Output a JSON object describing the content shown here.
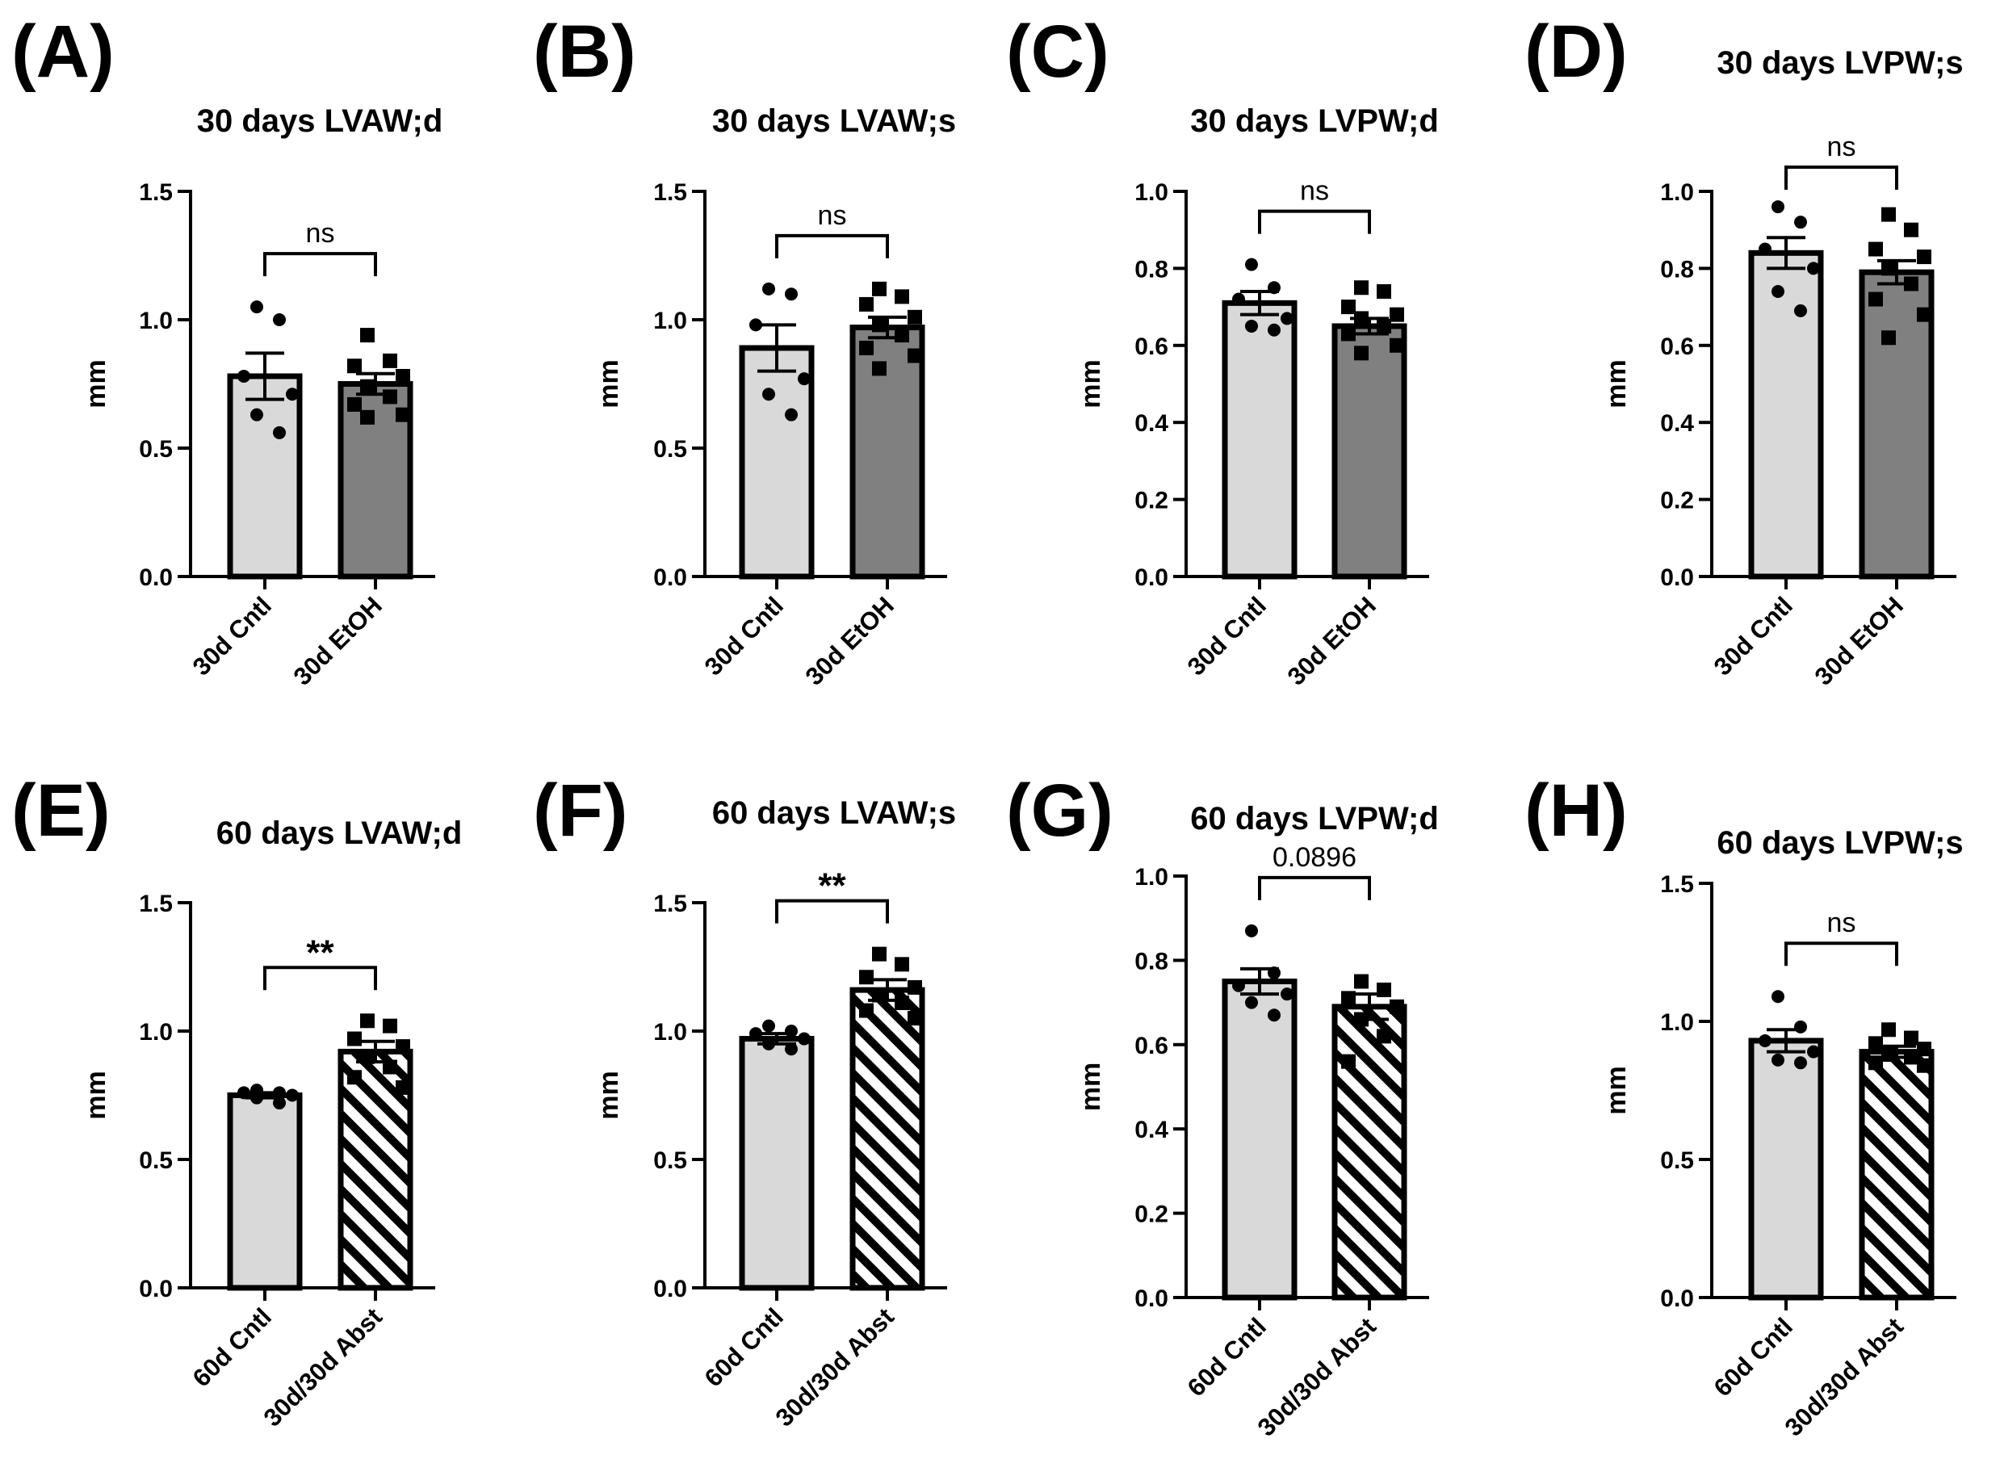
{
  "colors": {
    "control_bar": "#d9d9d9",
    "etoh_bar": "#808080",
    "abst_bar_bg": "#ffffff",
    "ink": "#000000"
  },
  "chart_data": [
    {
      "id": "A",
      "letter": "(A)",
      "type": "bar",
      "title": "30 days LVAW;d",
      "ylabel": "mm",
      "ylim": [
        0,
        1.5
      ],
      "yticks": [
        "0.0",
        "0.5",
        "1.0",
        "1.5"
      ],
      "categories": [
        "30d Cntl",
        "30d EtOH"
      ],
      "values": [
        0.78,
        0.75
      ],
      "sem": [
        0.09,
        0.04
      ],
      "fills": [
        "light",
        "dark"
      ],
      "markers": [
        "circle",
        "square"
      ],
      "points": [
        [
          1.05,
          1.0,
          0.78,
          0.71,
          0.63,
          0.56
        ],
        [
          0.94,
          0.84,
          0.82,
          0.78,
          0.74,
          0.7,
          0.67,
          0.63,
          0.62
        ]
      ],
      "significance": "ns"
    },
    {
      "id": "B",
      "letter": "(B)",
      "type": "bar",
      "title": "30 days LVAW;s",
      "ylabel": "mm",
      "ylim": [
        0,
        1.5
      ],
      "yticks": [
        "0.0",
        "0.5",
        "1.0",
        "1.5"
      ],
      "categories": [
        "30d Cntl",
        "30d EtOH"
      ],
      "values": [
        0.89,
        0.97
      ],
      "sem": [
        0.09,
        0.04
      ],
      "fills": [
        "light",
        "dark"
      ],
      "markers": [
        "circle",
        "square"
      ],
      "points": [
        [
          1.12,
          1.1,
          0.98,
          0.77,
          0.71,
          0.63
        ],
        [
          1.12,
          1.09,
          1.06,
          1.01,
          0.98,
          0.94,
          0.89,
          0.86,
          0.81
        ]
      ],
      "significance": "ns"
    },
    {
      "id": "C",
      "letter": "(C)",
      "type": "bar",
      "title": "30 days LVPW;d",
      "ylabel": "mm",
      "ylim": [
        0,
        1.0
      ],
      "yticks": [
        "0.0",
        "0.2",
        "0.4",
        "0.6",
        "0.8",
        "1.0"
      ],
      "categories": [
        "30d Cntl",
        "30d EtOH"
      ],
      "values": [
        0.71,
        0.65
      ],
      "sem": [
        0.03,
        0.02
      ],
      "fills": [
        "light",
        "dark"
      ],
      "markers": [
        "circle",
        "square"
      ],
      "points": [
        [
          0.81,
          0.75,
          0.72,
          0.67,
          0.65,
          0.64
        ],
        [
          0.75,
          0.74,
          0.7,
          0.68,
          0.67,
          0.65,
          0.63,
          0.6,
          0.58
        ]
      ],
      "significance": "ns"
    },
    {
      "id": "D",
      "letter": "(D)",
      "type": "bar",
      "title": "30 days LVPW;s",
      "ylabel": "mm",
      "ylim": [
        0,
        1.0
      ],
      "yticks": [
        "0.0",
        "0.2",
        "0.4",
        "0.6",
        "0.8",
        "1.0"
      ],
      "categories": [
        "30d Cntl",
        "30d EtOH"
      ],
      "values": [
        0.84,
        0.79
      ],
      "sem": [
        0.04,
        0.03
      ],
      "fills": [
        "light",
        "dark"
      ],
      "markers": [
        "circle",
        "square"
      ],
      "points": [
        [
          0.96,
          0.92,
          0.85,
          0.8,
          0.74,
          0.69
        ],
        [
          0.94,
          0.9,
          0.85,
          0.83,
          0.8,
          0.76,
          0.72,
          0.68,
          0.62
        ]
      ],
      "significance": "ns"
    },
    {
      "id": "E",
      "letter": "(E)",
      "type": "bar",
      "title": "60 days LVAW;d",
      "ylabel": "mm",
      "ylim": [
        0,
        1.5
      ],
      "yticks": [
        "0.0",
        "0.5",
        "1.0",
        "1.5"
      ],
      "categories": [
        "60d Cntl",
        "30d/30d Abst"
      ],
      "values": [
        0.75,
        0.92
      ],
      "sem": [
        0.01,
        0.04
      ],
      "fills": [
        "light",
        "hatch"
      ],
      "markers": [
        "circle",
        "square"
      ],
      "points": [
        [
          0.77,
          0.76,
          0.76,
          0.75,
          0.74,
          0.72
        ],
        [
          1.04,
          1.02,
          0.97,
          0.94,
          0.9,
          0.86,
          0.82,
          0.78
        ]
      ],
      "significance": "**"
    },
    {
      "id": "F",
      "letter": "(F)",
      "type": "bar",
      "title": "60 days LVAW;s",
      "ylabel": "mm",
      "ylim": [
        0,
        1.5
      ],
      "yticks": [
        "0.0",
        "0.5",
        "1.0",
        "1.5"
      ],
      "categories": [
        "60d Cntl",
        "30d/30d Abst"
      ],
      "values": [
        0.97,
        1.16
      ],
      "sem": [
        0.02,
        0.04
      ],
      "fills": [
        "light",
        "hatch"
      ],
      "markers": [
        "circle",
        "square"
      ],
      "points": [
        [
          1.02,
          1.0,
          0.99,
          0.97,
          0.95,
          0.93
        ],
        [
          1.3,
          1.26,
          1.21,
          1.17,
          1.14,
          1.11,
          1.08,
          1.05
        ]
      ],
      "significance": "**"
    },
    {
      "id": "G",
      "letter": "(G)",
      "type": "bar",
      "title": "60 days LVPW;d",
      "ylabel": "mm",
      "ylim": [
        0,
        1.0
      ],
      "yticks": [
        "0.0",
        "0.2",
        "0.4",
        "0.6",
        "0.8",
        "1.0"
      ],
      "categories": [
        "60d Cntl",
        "30d/30d Abst"
      ],
      "values": [
        0.75,
        0.69
      ],
      "sem": [
        0.03,
        0.03
      ],
      "fills": [
        "light",
        "hatch"
      ],
      "markers": [
        "circle",
        "square"
      ],
      "points": [
        [
          0.87,
          0.77,
          0.74,
          0.72,
          0.7,
          0.67
        ],
        [
          0.75,
          0.73,
          0.71,
          0.69,
          0.66,
          0.62,
          0.56
        ]
      ],
      "significance": "0.0896"
    },
    {
      "id": "H",
      "letter": "(H)",
      "type": "bar",
      "title": "60 days LVPW;s",
      "ylabel": "mm",
      "ylim": [
        0,
        1.5
      ],
      "yticks": [
        "0.0",
        "0.5",
        "1.0",
        "1.5"
      ],
      "categories": [
        "60d Cntl",
        "30d/30d Abst"
      ],
      "values": [
        0.93,
        0.89
      ],
      "sem": [
        0.04,
        0.02
      ],
      "fills": [
        "light",
        "hatch"
      ],
      "markers": [
        "circle",
        "square"
      ],
      "points": [
        [
          1.09,
          0.98,
          0.93,
          0.89,
          0.86,
          0.85
        ],
        [
          0.97,
          0.94,
          0.92,
          0.9,
          0.88,
          0.87,
          0.85,
          0.84
        ]
      ],
      "significance": "ns"
    }
  ]
}
